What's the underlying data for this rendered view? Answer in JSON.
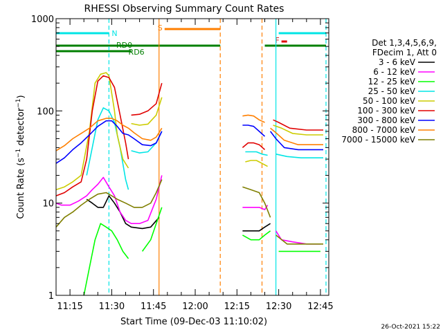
{
  "chart_data": {
    "type": "line",
    "title": "RHESSI Observing Summary Count Rates",
    "xlabel": "Start Time (09-Dec-03 11:10:02)",
    "ylabel": "Count Rate (s⁻¹ detector⁻¹)",
    "ylabel_parts": {
      "main": "Count Rate (s",
      "sup1": "−1",
      "mid": " detector",
      "sup2": "−1",
      "end": ")"
    },
    "y_scale": "log",
    "ylim": [
      1,
      1000
    ],
    "y_ticks": [
      {
        "value": 1,
        "label": "1"
      },
      {
        "value": 10,
        "label": "10"
      },
      {
        "value": 100,
        "label": "100"
      },
      {
        "value": 1000,
        "label": "1000"
      }
    ],
    "xlim": [
      "11:10",
      "12:48"
    ],
    "x_ticks": [
      "11:15",
      "11:30",
      "11:45",
      "12:00",
      "12:15",
      "12:30",
      "12:45"
    ],
    "legend_header": [
      "Det 1,3,4,5,6,9,",
      "FDecim 1, Att 0"
    ],
    "legend_placement": "right",
    "timestamp": "26-Oct-2021 15:22",
    "flags": [
      {
        "label": "N",
        "color": "#00e5e5",
        "segments": [
          [
            "11:10",
            "11:29"
          ],
          [
            "12:30",
            "12:47"
          ]
        ]
      },
      {
        "label": "S",
        "color": "#ff7f00",
        "segments": [
          [
            "11:49",
            "12:09"
          ]
        ]
      },
      {
        "label": "F",
        "color": "#e00000",
        "segments": [
          [
            "12:31",
            "12:33"
          ]
        ]
      },
      {
        "label": "RD0",
        "color": "#007f00",
        "segments": [
          [
            "11:10",
            "12:09"
          ],
          [
            "12:25",
            "12:47"
          ]
        ]
      },
      {
        "label": "RD6",
        "color": "#007f00",
        "segments": [
          [
            "11:10",
            "11:37"
          ]
        ]
      }
    ],
    "vlines": [
      {
        "time": "11:29",
        "color": "#00e5e5",
        "style": "dashed"
      },
      {
        "time": "11:47",
        "color": "#ff7f00",
        "style": "solid"
      },
      {
        "time": "12:09",
        "color": "#ff7f00",
        "style": "dashed"
      },
      {
        "time": "12:24",
        "color": "#ff7f00",
        "style": "dashed"
      },
      {
        "time": "12:29",
        "color": "#00e5e5",
        "style": "solid"
      },
      {
        "time": "12:47",
        "color": "#00e5e5",
        "style": "dashed"
      }
    ],
    "series": [
      {
        "name": "3 - 6 keV",
        "color": "#000000",
        "points": [
          [
            "11:21",
            11
          ],
          [
            "11:23",
            10
          ],
          [
            "11:25",
            9
          ],
          [
            "11:27",
            9
          ],
          [
            "11:29",
            12
          ],
          [
            "11:31",
            10
          ],
          [
            "11:33",
            8
          ],
          [
            "11:35",
            6
          ],
          [
            "11:37",
            5.5
          ],
          [
            "11:41",
            5.3
          ],
          [
            "11:44",
            5.5
          ],
          [
            "11:47",
            7
          ],
          [
            "null",
            null
          ],
          [
            "12:17",
            5
          ],
          [
            "12:20",
            5
          ],
          [
            "12:23",
            5
          ],
          [
            "12:25",
            5.5
          ],
          [
            "12:27",
            6
          ]
        ]
      },
      {
        "name": "6 - 12 keV",
        "color": "#ff00ff",
        "points": [
          [
            "11:10",
            10
          ],
          [
            "11:12",
            9.5
          ],
          [
            "11:15",
            9.5
          ],
          [
            "11:18",
            10.5
          ],
          [
            "11:21",
            12
          ],
          [
            "11:23",
            14
          ],
          [
            "11:25",
            16
          ],
          [
            "11:27",
            19
          ],
          [
            "11:29",
            15
          ],
          [
            "11:31",
            12
          ],
          [
            "11:33",
            8
          ],
          [
            "11:35",
            6.5
          ],
          [
            "11:37",
            6
          ],
          [
            "11:40",
            6
          ],
          [
            "11:43",
            6.5
          ],
          [
            "11:46",
            11
          ],
          [
            "11:48",
            20
          ],
          [
            "null",
            null
          ],
          [
            "12:17",
            9
          ],
          [
            "12:20",
            9
          ],
          [
            "12:23",
            9
          ],
          [
            "12:25",
            8.5
          ],
          [
            "12:26",
            9.5
          ],
          [
            "null",
            null
          ],
          [
            "12:29",
            5
          ],
          [
            "12:31",
            4
          ],
          [
            "12:35",
            3.8
          ],
          [
            "12:40",
            3.6
          ],
          [
            "12:45",
            3.6
          ]
        ]
      },
      {
        "name": "12 - 25 keV",
        "color": "#00ff00",
        "points": [
          [
            "11:20",
            1
          ],
          [
            "11:22",
            2
          ],
          [
            "11:24",
            4
          ],
          [
            "11:26",
            6
          ],
          [
            "11:28",
            5.5
          ],
          [
            "11:30",
            5
          ],
          [
            "11:32",
            4
          ],
          [
            "11:34",
            3
          ],
          [
            "11:36",
            2.5
          ],
          [
            "null",
            null
          ],
          [
            "11:41",
            3
          ],
          [
            "11:44",
            4
          ],
          [
            "11:46",
            6
          ],
          [
            "11:48",
            9
          ],
          [
            "null",
            null
          ],
          [
            "12:17",
            4.5
          ],
          [
            "12:20",
            4
          ],
          [
            "12:23",
            4
          ],
          [
            "12:25",
            4.5
          ],
          [
            "12:27",
            5
          ],
          [
            "null",
            null
          ],
          [
            "12:30",
            3
          ],
          [
            "12:35",
            3
          ],
          [
            "12:40",
            3
          ],
          [
            "12:45",
            3
          ]
        ]
      },
      {
        "name": "25 - 50 keV",
        "color": "#00e5e5",
        "points": [
          [
            "11:21",
            20
          ],
          [
            "11:23",
            40
          ],
          [
            "11:25",
            80
          ],
          [
            "11:27",
            108
          ],
          [
            "11:29",
            100
          ],
          [
            "11:31",
            75
          ],
          [
            "11:33",
            40
          ],
          [
            "11:35",
            18
          ],
          [
            "11:36",
            14
          ],
          [
            "null",
            null
          ],
          [
            "11:37",
            37
          ],
          [
            "11:40",
            35
          ],
          [
            "11:43",
            36
          ],
          [
            "11:46",
            45
          ],
          [
            "11:48",
            60
          ],
          [
            "null",
            null
          ],
          [
            "12:18",
            36
          ],
          [
            "12:20",
            36
          ],
          [
            "12:22",
            36
          ],
          [
            "12:24",
            34
          ],
          [
            "12:26",
            33
          ],
          [
            "null",
            null
          ],
          [
            "12:29",
            34
          ],
          [
            "12:33",
            32
          ],
          [
            "12:38",
            31
          ],
          [
            "12:42",
            31
          ],
          [
            "12:46",
            31
          ]
        ]
      },
      {
        "name": "50 - 100 keV",
        "color": "#cccc00",
        "points": [
          [
            "11:10",
            14
          ],
          [
            "11:13",
            15
          ],
          [
            "11:16",
            17
          ],
          [
            "11:19",
            20
          ],
          [
            "11:22",
            60
          ],
          [
            "11:24",
            200
          ],
          [
            "11:26",
            250
          ],
          [
            "11:28",
            260
          ],
          [
            "11:29",
            240
          ],
          [
            "11:31",
            100
          ],
          [
            "11:32",
            55
          ],
          [
            "11:34",
            30
          ],
          [
            "11:36",
            24
          ],
          [
            "null",
            null
          ],
          [
            "11:37",
            73
          ],
          [
            "11:40",
            70
          ],
          [
            "11:43",
            72
          ],
          [
            "11:46",
            90
          ],
          [
            "11:48",
            140
          ],
          [
            "null",
            null
          ],
          [
            "12:18",
            28
          ],
          [
            "12:20",
            29
          ],
          [
            "12:22",
            29
          ],
          [
            "12:24",
            27
          ],
          [
            "12:26",
            25
          ],
          [
            "null",
            null
          ],
          [
            "12:28",
            70
          ],
          [
            "12:31",
            65
          ],
          [
            "12:35",
            57
          ],
          [
            "12:40",
            55
          ],
          [
            "12:46",
            55
          ]
        ]
      },
      {
        "name": "100 - 300 keV",
        "color": "#e00000",
        "points": [
          [
            "11:10",
            12
          ],
          [
            "11:13",
            13
          ],
          [
            "11:16",
            15
          ],
          [
            "11:19",
            17
          ],
          [
            "11:21",
            30
          ],
          [
            "11:23",
            100
          ],
          [
            "11:25",
            210
          ],
          [
            "11:27",
            240
          ],
          [
            "11:29",
            230
          ],
          [
            "11:31",
            180
          ],
          [
            "11:33",
            90
          ],
          [
            "11:35",
            45
          ],
          [
            "11:36",
            30
          ],
          [
            "null",
            null
          ],
          [
            "11:37",
            90
          ],
          [
            "11:40",
            92
          ],
          [
            "11:43",
            100
          ],
          [
            "11:46",
            120
          ],
          [
            "11:48",
            200
          ],
          [
            "null",
            null
          ],
          [
            "12:17",
            40
          ],
          [
            "12:19",
            45
          ],
          [
            "12:21",
            45
          ],
          [
            "12:23",
            43
          ],
          [
            "12:25",
            38
          ],
          [
            "null",
            null
          ],
          [
            "12:28",
            80
          ],
          [
            "12:30",
            75
          ],
          [
            "12:34",
            65
          ],
          [
            "12:40",
            62
          ],
          [
            "12:46",
            62
          ]
        ]
      },
      {
        "name": "300 - 800 keV",
        "color": "#0000ff",
        "points": [
          [
            "11:10",
            27
          ],
          [
            "11:13",
            31
          ],
          [
            "11:16",
            38
          ],
          [
            "11:19",
            45
          ],
          [
            "11:22",
            55
          ],
          [
            "11:25",
            68
          ],
          [
            "11:28",
            78
          ],
          [
            "11:30",
            78
          ],
          [
            "11:32",
            68
          ],
          [
            "11:34",
            57
          ],
          [
            "11:36",
            55
          ],
          [
            "11:38",
            50
          ],
          [
            "11:41",
            43
          ],
          [
            "11:44",
            42
          ],
          [
            "11:46",
            45
          ],
          [
            "11:48",
            60
          ],
          [
            "null",
            null
          ],
          [
            "12:17",
            70
          ],
          [
            "12:19",
            70
          ],
          [
            "12:21",
            68
          ],
          [
            "12:23",
            60
          ],
          [
            "12:25",
            53
          ],
          [
            "null",
            null
          ],
          [
            "12:27",
            60
          ],
          [
            "12:29",
            50
          ],
          [
            "12:32",
            40
          ],
          [
            "12:37",
            38
          ],
          [
            "12:42",
            38
          ],
          [
            "12:46",
            38
          ]
        ]
      },
      {
        "name": "800 - 7000 keV",
        "color": "#ff7f00",
        "points": [
          [
            "11:10",
            37
          ],
          [
            "11:13",
            42
          ],
          [
            "11:16",
            50
          ],
          [
            "11:19",
            57
          ],
          [
            "11:22",
            65
          ],
          [
            "11:25",
            78
          ],
          [
            "11:28",
            83
          ],
          [
            "11:30",
            83
          ],
          [
            "11:32",
            78
          ],
          [
            "11:34",
            70
          ],
          [
            "11:36",
            65
          ],
          [
            "11:38",
            58
          ],
          [
            "11:41",
            50
          ],
          [
            "11:44",
            48
          ],
          [
            "11:46",
            52
          ],
          [
            "11:48",
            65
          ],
          [
            "null",
            null
          ],
          [
            "12:17",
            88
          ],
          [
            "12:19",
            90
          ],
          [
            "12:21",
            88
          ],
          [
            "12:23",
            80
          ],
          [
            "12:25",
            75
          ],
          [
            "null",
            null
          ],
          [
            "12:27",
            65
          ],
          [
            "12:29",
            58
          ],
          [
            "12:32",
            48
          ],
          [
            "12:37",
            43
          ],
          [
            "12:42",
            43
          ],
          [
            "12:46",
            43
          ]
        ]
      },
      {
        "name": "7000 - 15000 keV",
        "color": "#7f7f00",
        "points": [
          [
            "11:10",
            5.5
          ],
          [
            "11:13",
            7
          ],
          [
            "11:16",
            8
          ],
          [
            "11:19",
            9.5
          ],
          [
            "11:22",
            11
          ],
          [
            "11:25",
            12.5
          ],
          [
            "11:28",
            13
          ],
          [
            "11:30",
            12
          ],
          [
            "11:32",
            11
          ],
          [
            "11:35",
            10
          ],
          [
            "11:38",
            9
          ],
          [
            "11:41",
            9
          ],
          [
            "11:44",
            10
          ],
          [
            "11:46",
            13
          ],
          [
            "11:48",
            18
          ],
          [
            "null",
            null
          ],
          [
            "12:17",
            15
          ],
          [
            "12:20",
            14
          ],
          [
            "12:23",
            13
          ],
          [
            "12:25",
            10
          ],
          [
            "12:27",
            7
          ],
          [
            "null",
            null
          ],
          [
            "12:29",
            4.5
          ],
          [
            "12:33",
            3.6
          ],
          [
            "12:38",
            3.6
          ],
          [
            "12:43",
            3.6
          ],
          [
            "12:46",
            3.6
          ]
        ]
      }
    ]
  }
}
